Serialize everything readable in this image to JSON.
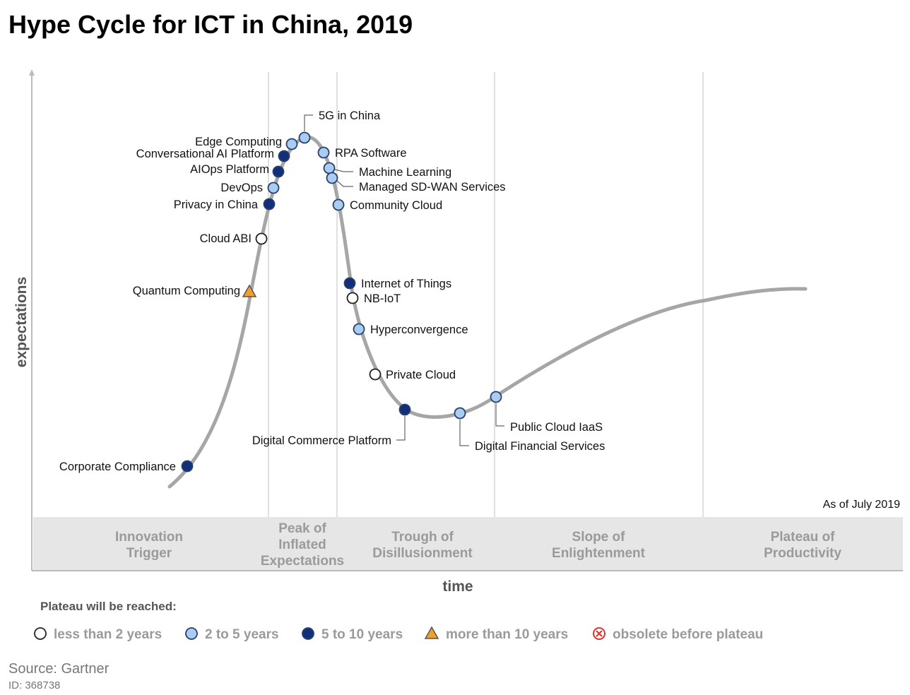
{
  "title": "Hype Cycle for ICT in China, 2019",
  "axes": {
    "y_label": "expectations",
    "x_label": "time"
  },
  "as_of": "As of July 2019",
  "phases": [
    {
      "lines": [
        "Innovation",
        "Trigger"
      ]
    },
    {
      "lines": [
        "Peak of",
        "Inflated",
        "Expectations"
      ]
    },
    {
      "lines": [
        "Trough of",
        "Disillusionment"
      ]
    },
    {
      "lines": [
        "Slope of",
        "Enlightenment"
      ]
    },
    {
      "lines": [
        "Plateau of",
        "Productivity"
      ]
    }
  ],
  "legend": {
    "title": "Plateau will be reached:",
    "items": [
      {
        "label": "less than 2 years",
        "marker": "white-circle"
      },
      {
        "label": "2 to 5 years",
        "marker": "light-blue-circle"
      },
      {
        "label": "5 to 10 years",
        "marker": "dark-blue-circle"
      },
      {
        "label": "more than 10 years",
        "marker": "orange-triangle"
      },
      {
        "label": "obsolete before plateau",
        "marker": "red-x-circle"
      }
    ]
  },
  "technologies": [
    {
      "name": "Corporate Compliance",
      "category": "5 to 10 years"
    },
    {
      "name": "Quantum Computing",
      "category": "more than 10 years"
    },
    {
      "name": "Cloud ABI",
      "category": "less than 2 years"
    },
    {
      "name": "Privacy in China",
      "category": "5 to 10 years"
    },
    {
      "name": "DevOps",
      "category": "2 to 5 years"
    },
    {
      "name": "AIOps Platform",
      "category": "5 to 10 years"
    },
    {
      "name": "Conversational AI Platform",
      "category": "5 to 10 years"
    },
    {
      "name": "Edge Computing",
      "category": "2 to 5 years"
    },
    {
      "name": "5G in China",
      "category": "2 to 5 years"
    },
    {
      "name": "RPA Software",
      "category": "2 to 5 years"
    },
    {
      "name": "Machine Learning",
      "category": "2 to 5 years"
    },
    {
      "name": "Managed SD-WAN Services",
      "category": "2 to 5 years"
    },
    {
      "name": "Community Cloud",
      "category": "2 to 5 years"
    },
    {
      "name": "Internet of Things",
      "category": "5 to 10 years"
    },
    {
      "name": "NB-IoT",
      "category": "less than 2 years"
    },
    {
      "name": "Hyperconvergence",
      "category": "2 to 5 years"
    },
    {
      "name": "Private Cloud",
      "category": "less than 2 years"
    },
    {
      "name": "Digital Commerce Platform",
      "category": "5 to 10 years"
    },
    {
      "name": "Digital Financial Services",
      "category": "2 to 5 years"
    },
    {
      "name": "Public Cloud IaaS",
      "category": "2 to 5 years"
    }
  ],
  "colors": {
    "less than 2 years": "#ffffff",
    "2 to 5 years": "#a9cdf0",
    "5 to 10 years": "#12307a",
    "more than 10 years": "#f0a030",
    "obsolete": "#e03030",
    "curve": "#a6a6a6",
    "phase_band": "#e6e6e6"
  },
  "source": "Source: Gartner",
  "id": "ID: 368738"
}
